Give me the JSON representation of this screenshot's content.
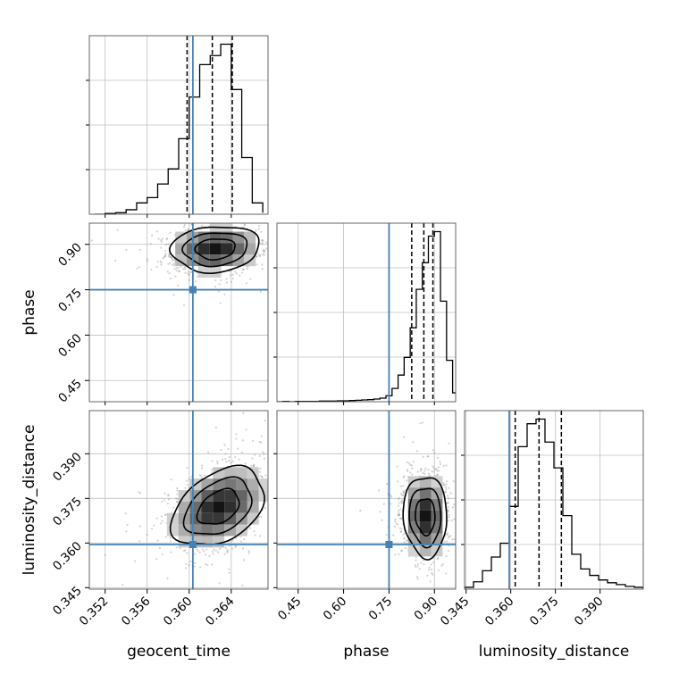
{
  "chart_data": {
    "type": "corner",
    "parameters": [
      "geocent_time",
      "phase",
      "luminosity_distance"
    ],
    "axis_labels": {
      "geocent_time": "geocent_time",
      "phase": "phase",
      "luminosity_distance": "luminosity_distance"
    },
    "ranges": {
      "geocent_time": [
        0.3505,
        0.3675
      ],
      "phase": [
        0.38,
        0.97
      ],
      "luminosity_distance": [
        0.3445,
        0.4045
      ]
    },
    "ticks": {
      "geocent_time": [
        "0.352",
        "0.356",
        "0.360",
        "0.364"
      ],
      "phase": [
        "0.45",
        "0.60",
        "0.75",
        "0.90"
      ],
      "luminosity_distance": [
        "0.345",
        "0.360",
        "0.375",
        "0.390"
      ]
    },
    "truths": {
      "geocent_time": 0.36035,
      "phase": 0.75,
      "luminosity_distance": 0.3595
    },
    "quantiles": {
      "geocent_time": [
        0.3598,
        0.3622,
        0.3641
      ],
      "phase": [
        0.825,
        0.865,
        0.895
      ],
      "luminosity_distance": [
        0.3615,
        0.3695,
        0.377
      ]
    },
    "marginals": {
      "geocent_time": {
        "bins": [
          0.351,
          0.352,
          0.353,
          0.354,
          0.355,
          0.356,
          0.357,
          0.358,
          0.359,
          0.36,
          0.361,
          0.362,
          0.363,
          0.364,
          0.365,
          0.366,
          0.367
        ],
        "counts": [
          0,
          1,
          2,
          6,
          15,
          22,
          40,
          60,
          100,
          155,
          198,
          210,
          225,
          165,
          75,
          15,
          2
        ]
      },
      "phase": {
        "bins": [
          0.38,
          0.4,
          0.42,
          0.44,
          0.46,
          0.48,
          0.5,
          0.52,
          0.54,
          0.56,
          0.58,
          0.6,
          0.62,
          0.64,
          0.66,
          0.68,
          0.7,
          0.72,
          0.74,
          0.76,
          0.78,
          0.8,
          0.82,
          0.84,
          0.86,
          0.88,
          0.9,
          0.92,
          0.94,
          0.96,
          0.98
        ],
        "counts": [
          0,
          1,
          0,
          1,
          1,
          1,
          1,
          2,
          2,
          2,
          3,
          3,
          4,
          5,
          6,
          7,
          9,
          12,
          20,
          45,
          90,
          150,
          250,
          380,
          470,
          560,
          575,
          340,
          140,
          30
        ]
      },
      "luminosity_distance": {
        "bins": [
          0.3445,
          0.3475,
          0.3505,
          0.3535,
          0.3565,
          0.3595,
          0.3625,
          0.3655,
          0.3685,
          0.3715,
          0.3745,
          0.3775,
          0.3805,
          0.3835,
          0.3865,
          0.3895,
          0.3925,
          0.3955,
          0.3985,
          0.4015,
          0.4045
        ],
        "counts": [
          2,
          8,
          20,
          35,
          50,
          90,
          155,
          180,
          185,
          160,
          132,
          80,
          38,
          22,
          15,
          10,
          7,
          5,
          3,
          2
        ]
      }
    },
    "joint": [
      {
        "x": "geocent_time",
        "y": "phase",
        "center": [
          0.3625,
          0.885
        ],
        "sigma": [
          0.0021,
          0.038
        ],
        "rho": 0.1
      },
      {
        "x": "geocent_time",
        "y": "luminosity_distance",
        "center": [
          0.3628,
          0.372
        ],
        "sigma": [
          0.0022,
          0.0066
        ],
        "rho": 0.38
      },
      {
        "x": "phase",
        "y": "luminosity_distance",
        "center": [
          0.87,
          0.369
        ],
        "sigma": [
          0.036,
          0.0068
        ],
        "rho": -0.05
      }
    ],
    "grid": true,
    "colors": {
      "histogram": "#000000",
      "truth": "#4682b4",
      "grid": "#c0c0c0",
      "scatter": "#808080"
    }
  }
}
